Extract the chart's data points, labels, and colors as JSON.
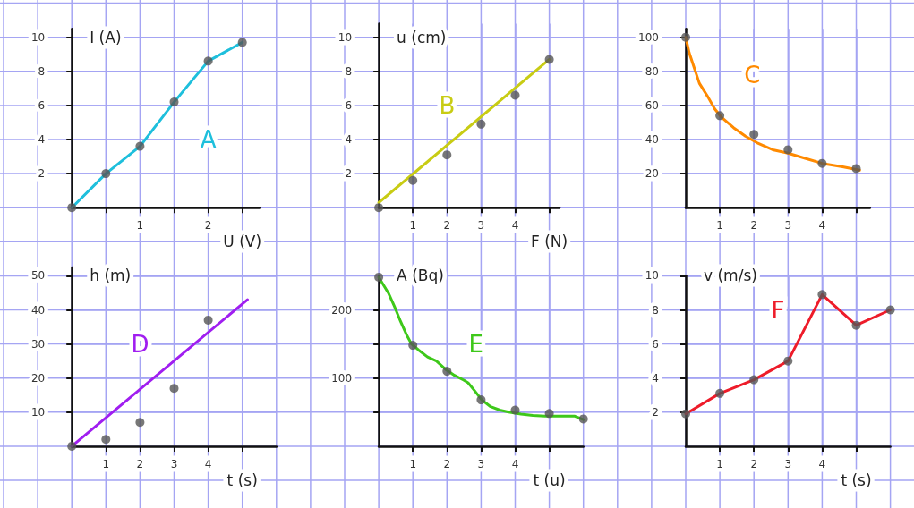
{
  "chart_data": [
    {
      "type": "scatter",
      "xlabel": "U (V)",
      "ylabel": "I (A)",
      "xlim": [
        0,
        2.75
      ],
      "xticks": [
        {
          "value": 0.5,
          "label": null
        },
        1,
        {
          "value": 1.5,
          "label": null
        },
        2,
        {
          "value": 2.5,
          "label": null
        }
      ],
      "ylim": [
        0,
        10.5
      ],
      "yticks": [
        2,
        4,
        6,
        8,
        10
      ],
      "grid": true,
      "marker": "circle",
      "series": [
        {
          "type": "line",
          "name": "A",
          "color": "#1ebfdc",
          "marker": "none",
          "x": [
            0,
            0.5,
            1,
            1.5,
            2,
            2.5
          ],
          "values": [
            0,
            2,
            3.6,
            6.2,
            8.6,
            9.7
          ]
        },
        {
          "color": "#555555",
          "x": [
            0,
            0.5,
            1,
            1.5,
            2,
            2.5
          ],
          "values": [
            0,
            2,
            3.6,
            6.2,
            8.6,
            9.7
          ]
        }
      ]
    },
    {
      "type": "scatter",
      "xlabel": "F (N)",
      "ylabel": "u (cm)",
      "xlim": [
        0,
        5.3
      ],
      "xticks": [
        1,
        2,
        3,
        4,
        {
          "value": 5,
          "label": null
        }
      ],
      "ylim": [
        0,
        10.8
      ],
      "yticks": [
        2,
        4,
        6,
        8,
        10
      ],
      "grid": true,
      "marker": "circle",
      "series": [
        {
          "type": "line",
          "name": "B",
          "color": "#c8cc14",
          "marker": "none",
          "x": [
            0,
            5
          ],
          "values": [
            0.3,
            8.7
          ]
        },
        {
          "color": "#555555",
          "x": [
            0,
            1,
            2,
            3,
            4,
            5
          ],
          "values": [
            0,
            1.6,
            3.1,
            4.9,
            6.6,
            8.7
          ]
        }
      ]
    },
    {
      "type": "scatter",
      "xlim": [
        0,
        5.4
      ],
      "xticks": [
        1,
        2,
        3,
        4,
        {
          "value": 5,
          "label": null
        }
      ],
      "ylim": [
        0,
        105
      ],
      "yticks": [
        20,
        40,
        60,
        80,
        100
      ],
      "grid": true,
      "marker": "circle",
      "series": [
        {
          "type": "line",
          "name": "C",
          "color": "#ff8a00",
          "marker": "none",
          "x": [
            0,
            0.1,
            0.25,
            0.4,
            0.65,
            0.85,
            1.05,
            1.4,
            1.75,
            2.1,
            2.55,
            3,
            3.5,
            4,
            4.6,
            5.1
          ],
          "values": [
            100,
            91,
            82,
            73,
            65,
            58,
            53,
            47,
            42,
            38,
            34,
            32,
            29,
            26,
            24,
            22
          ]
        },
        {
          "color": "#555555",
          "x": [
            0,
            1,
            2,
            3,
            4,
            5
          ],
          "values": [
            100,
            54,
            43,
            34,
            26,
            23
          ]
        }
      ]
    },
    {
      "type": "scatter",
      "xlabel": "t (s)",
      "ylabel": "h (m)",
      "xlim": [
        0,
        6
      ],
      "xticks": [
        1,
        2,
        3,
        4,
        {
          "value": 5,
          "label": null
        }
      ],
      "ylim": [
        0,
        52.5
      ],
      "yticks": [
        10,
        20,
        30,
        40,
        50
      ],
      "grid": true,
      "marker": "circle",
      "series": [
        {
          "type": "line",
          "name": "D",
          "color": "#a01ef0",
          "marker": "none",
          "x": [
            0,
            5.15
          ],
          "values": [
            0,
            43
          ]
        },
        {
          "color": "#555555",
          "x": [
            0,
            1,
            2,
            3,
            4
          ],
          "values": [
            0,
            2,
            7,
            17,
            37
          ]
        }
      ]
    },
    {
      "type": "scatter",
      "xlabel": "t (u)",
      "ylabel": "A (Bq)",
      "xlim": [
        0,
        6
      ],
      "xticks": [
        1,
        2,
        3,
        4,
        {
          "value": 5,
          "label": null
        }
      ],
      "ylim": [
        0,
        250
      ],
      "yticks": [
        {
          "value": 50,
          "label": null
        },
        100,
        {
          "value": 150,
          "label": null
        },
        200
      ],
      "grid": true,
      "marker": "circle",
      "series": [
        {
          "type": "line",
          "name": "E",
          "color": "#3ec81a",
          "marker": "none",
          "x": [
            0,
            0.28,
            0.46,
            0.64,
            0.81,
            0.96,
            1.17,
            1.43,
            1.69,
            1.98,
            2.22,
            2.49,
            2.62,
            2.8,
            3.02,
            3.28,
            3.55,
            3.81,
            4.17,
            4.52,
            4.87,
            5.31,
            5.75,
            6
          ],
          "values": [
            248,
            225,
            205,
            183,
            164,
            150,
            141,
            131,
            125,
            112,
            104,
            97,
            93,
            82,
            68,
            58,
            53,
            50,
            47,
            45,
            44,
            44,
            44,
            39
          ]
        },
        {
          "color": "#555555",
          "x": [
            0,
            1,
            2,
            3,
            4,
            5,
            6
          ],
          "values": [
            248,
            148,
            110,
            68,
            53,
            48,
            40
          ]
        }
      ]
    },
    {
      "type": "scatter",
      "xlabel": "t (s)",
      "ylabel": "v (m/s)",
      "xlim": [
        0,
        6
      ],
      "xticks": [
        1,
        2,
        3,
        4,
        {
          "value": 5,
          "label": null
        }
      ],
      "ylim": [
        0,
        10
      ],
      "yticks": [
        2,
        4,
        6,
        8,
        10
      ],
      "grid": true,
      "marker": "circle",
      "series": [
        {
          "type": "line",
          "name": "F",
          "color": "#ee1c2a",
          "marker": "none",
          "x": [
            0,
            1,
            2,
            3,
            4,
            5,
            6
          ],
          "values": [
            1.9,
            3.1,
            3.9,
            5,
            8.9,
            7.1,
            8
          ]
        },
        {
          "color": "#555555",
          "x": [
            0,
            1,
            2,
            3,
            4,
            5,
            6
          ],
          "values": [
            1.9,
            3.1,
            3.9,
            5,
            8.9,
            7.1,
            8
          ]
        }
      ]
    }
  ]
}
